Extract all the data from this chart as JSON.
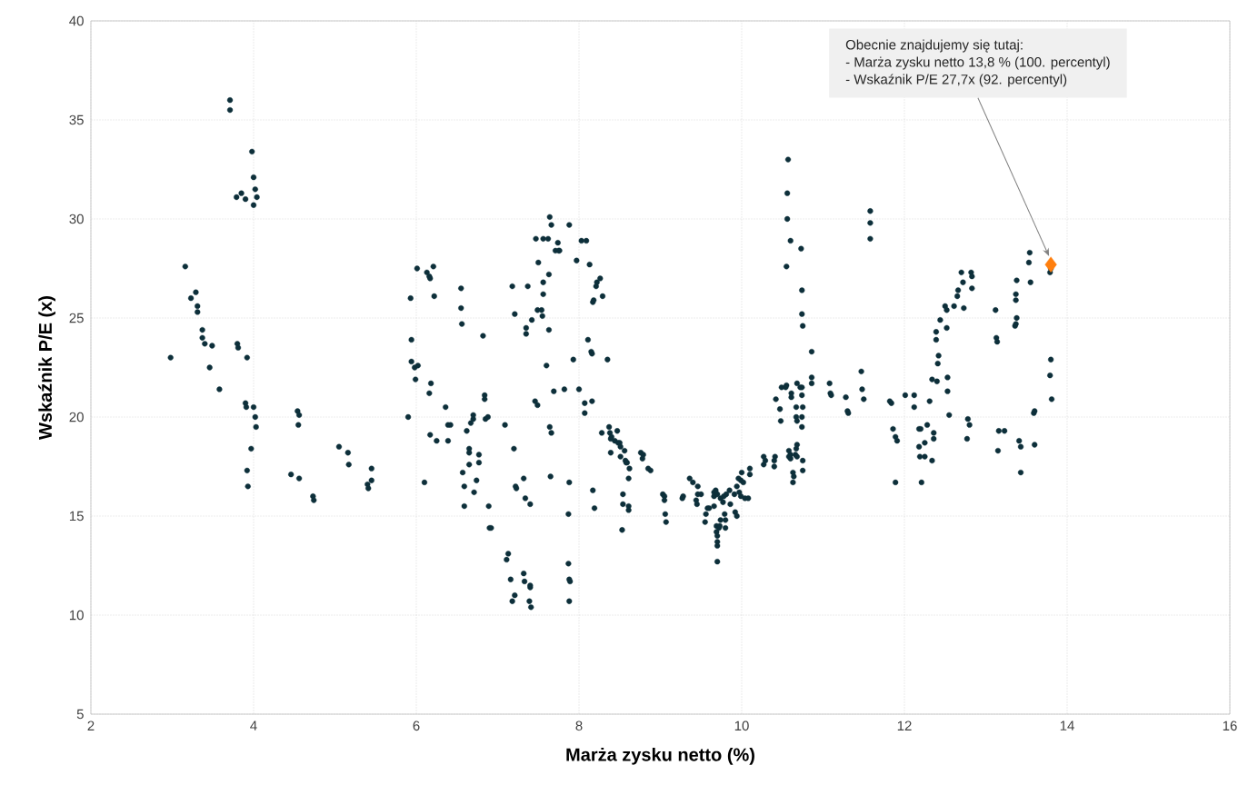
{
  "chart_data": {
    "type": "scatter",
    "xlabel": "Marża zysku netto (%)",
    "ylabel": "Wskaźnik P/E (x)",
    "xlim": [
      2,
      16
    ],
    "ylim": [
      5,
      40
    ],
    "xticks": [
      2,
      4,
      6,
      8,
      10,
      12,
      14,
      16
    ],
    "yticks": [
      5,
      10,
      15,
      20,
      25,
      30,
      35,
      40
    ],
    "grid": true,
    "marker": "circle",
    "series": [
      {
        "color": "#0d2f3a",
        "x": [
          2.98,
          3.16,
          3.23,
          3.29,
          3.31,
          3.31,
          3.37,
          3.37,
          3.4,
          3.46,
          3.49,
          3.58,
          3.71,
          3.71,
          3.79,
          3.8,
          3.81,
          3.85,
          3.9,
          3.9,
          3.91,
          3.92,
          3.92,
          3.93,
          3.98,
          4.0,
          4.02,
          4.04,
          4.0,
          4.0,
          4.02,
          4.03,
          3.97,
          4.46,
          4.56,
          4.54,
          4.56,
          4.55,
          4.73,
          4.74,
          5.05,
          5.16,
          5.17,
          5.4,
          5.41,
          5.45,
          5.45,
          5.9,
          5.93,
          5.94,
          5.94,
          5.98,
          5.99,
          6.02,
          6.01,
          6.1,
          6.13,
          6.16,
          6.17,
          6.16,
          6.18,
          6.17,
          6.21,
          6.22,
          6.25,
          6.36,
          6.39,
          6.42,
          6.39,
          6.55,
          6.55,
          6.56,
          6.57,
          6.59,
          6.59,
          6.62,
          6.65,
          6.65,
          6.65,
          6.67,
          6.7,
          6.7,
          6.71,
          6.74,
          6.77,
          6.77,
          6.82,
          6.84,
          6.84,
          6.85,
          6.88,
          6.89,
          6.9,
          6.92,
          7.09,
          7.11,
          7.13,
          7.16,
          7.18,
          7.21,
          7.18,
          7.21,
          7.2,
          7.23,
          7.22,
          7.32,
          7.33,
          7.32,
          7.34,
          7.35,
          7.35,
          7.37,
          7.39,
          7.4,
          7.4,
          7.41,
          7.4,
          7.42,
          7.46,
          7.49,
          7.49,
          7.5,
          7.47,
          7.56,
          7.54,
          7.55,
          7.56,
          7.56,
          7.6,
          7.62,
          7.63,
          7.63,
          7.64,
          7.66,
          7.64,
          7.66,
          7.65,
          7.69,
          7.71,
          7.74,
          7.75,
          7.76,
          7.82,
          7.87,
          7.87,
          7.88,
          7.89,
          7.88,
          7.88,
          7.88,
          7.93,
          7.97,
          8.0,
          8.03,
          8.09,
          8.07,
          8.07,
          8.11,
          8.13,
          8.15,
          8.16,
          8.16,
          8.17,
          8.19,
          8.17,
          8.18,
          8.21,
          8.22,
          8.26,
          8.29,
          8.28,
          8.35,
          8.37,
          8.38,
          8.39,
          8.39,
          8.4,
          8.44,
          8.48,
          8.47,
          8.5,
          8.51,
          8.51,
          8.53,
          8.54,
          8.54,
          8.56,
          8.57,
          8.58,
          8.59,
          8.61,
          8.61,
          8.61,
          8.62,
          8.76,
          8.79,
          8.78,
          8.85,
          8.88,
          9.03,
          9.05,
          9.06,
          9.07,
          9.05,
          9.28,
          9.27,
          9.36,
          9.4,
          9.44,
          9.45,
          9.46,
          9.46,
          9.5,
          9.55,
          9.56,
          9.58,
          9.6,
          9.66,
          9.66,
          9.66,
          9.68,
          9.7,
          9.69,
          9.69,
          9.7,
          9.7,
          9.7,
          9.7,
          9.72,
          9.73,
          9.74,
          9.74,
          9.77,
          9.78,
          9.79,
          9.8,
          9.8,
          9.81,
          9.85,
          9.86,
          9.91,
          9.92,
          9.94,
          9.94,
          9.96,
          9.97,
          9.99,
          9.99,
          10.0,
          10.02,
          10.04,
          10.08,
          10.1,
          10.1,
          10.27,
          10.27,
          10.29,
          10.4,
          10.4,
          10.41,
          10.42,
          10.47,
          10.48,
          10.49,
          10.54,
          10.55,
          10.57,
          10.56,
          10.56,
          10.55,
          10.58,
          10.58,
          10.6,
          10.6,
          10.6,
          10.61,
          10.61,
          10.63,
          10.63,
          10.64,
          10.66,
          10.67,
          10.67,
          10.68,
          10.67,
          10.68,
          10.68,
          10.68,
          10.72,
          10.73,
          10.74,
          10.75,
          10.74,
          10.74,
          10.74,
          10.75,
          10.74,
          10.74,
          10.75,
          10.75,
          10.86,
          10.86,
          10.86,
          11.08,
          11.09,
          11.1,
          11.28,
          11.3,
          11.31,
          11.47,
          11.48,
          11.5,
          11.58,
          11.58,
          11.58,
          11.82,
          11.84,
          11.86,
          11.89,
          11.91,
          11.89,
          12.01,
          12.12,
          12.12,
          12.18,
          12.18,
          12.19,
          12.21,
          12.2,
          12.25,
          12.28,
          12.25,
          12.31,
          12.34,
          12.34,
          12.36,
          12.36,
          12.39,
          12.39,
          12.4,
          12.41,
          12.42,
          12.44,
          12.5,
          12.52,
          12.52,
          12.53,
          12.53,
          12.55,
          12.61,
          12.65,
          12.66,
          12.7,
          12.72,
          12.73,
          12.77,
          12.78,
          12.8,
          12.82,
          12.83,
          12.83,
          13.12,
          13.13,
          13.14,
          13.16,
          13.23,
          13.15,
          13.36,
          13.37,
          13.37,
          13.37,
          13.38,
          13.38,
          13.41,
          13.43,
          13.43,
          13.53,
          13.54,
          13.55,
          13.59,
          13.6,
          13.6,
          13.79,
          13.8,
          13.8,
          13.79,
          13.81
        ],
        "values": [
          23.0,
          27.6,
          26.0,
          26.3,
          25.6,
          25.3,
          24.4,
          24.0,
          23.7,
          22.5,
          23.6,
          21.4,
          36.0,
          35.5,
          31.1,
          23.7,
          23.5,
          31.3,
          31.0,
          20.7,
          20.5,
          23.0,
          17.3,
          16.5,
          33.4,
          32.1,
          31.5,
          31.1,
          30.7,
          20.5,
          20.0,
          19.5,
          18.4,
          17.1,
          16.9,
          20.3,
          20.1,
          19.6,
          16.0,
          15.8,
          18.5,
          18.2,
          17.6,
          16.6,
          16.4,
          16.8,
          17.4,
          20.0,
          26.0,
          23.9,
          22.8,
          22.5,
          21.9,
          22.6,
          27.5,
          16.7,
          27.3,
          27.1,
          27.0,
          21.2,
          21.7,
          19.1,
          27.6,
          26.1,
          18.8,
          20.5,
          19.6,
          19.6,
          18.8,
          26.5,
          25.5,
          24.7,
          17.2,
          16.5,
          15.5,
          19.3,
          18.4,
          18.2,
          17.6,
          19.7,
          20.1,
          19.9,
          16.2,
          16.8,
          18.1,
          17.7,
          24.1,
          21.1,
          20.9,
          19.9,
          20.0,
          15.5,
          14.4,
          14.4,
          19.6,
          12.8,
          13.1,
          11.8,
          26.6,
          11.0,
          10.7,
          25.2,
          18.4,
          16.4,
          16.5,
          12.1,
          11.7,
          16.9,
          15.9,
          24.5,
          24.2,
          26.6,
          10.7,
          11.4,
          11.5,
          10.4,
          15.6,
          24.9,
          20.8,
          25.4,
          20.6,
          27.8,
          29.0,
          29.0,
          25.4,
          25.1,
          26.2,
          26.8,
          22.6,
          29.0,
          24.4,
          27.2,
          30.1,
          29.7,
          19.5,
          19.2,
          17.0,
          21.3,
          28.4,
          28.8,
          28.4,
          28.4,
          21.4,
          15.1,
          12.6,
          11.8,
          11.7,
          10.7,
          29.7,
          16.7,
          22.9,
          27.9,
          21.4,
          28.9,
          28.9,
          20.2,
          20.7,
          23.9,
          27.7,
          23.3,
          23.2,
          20.8,
          16.3,
          15.4,
          25.8,
          25.9,
          26.6,
          26.8,
          27.0,
          26.1,
          19.2,
          22.9,
          19.5,
          19.2,
          18.2,
          18.9,
          19.0,
          18.8,
          18.7,
          19.3,
          18.7,
          18.5,
          18.0,
          14.3,
          15.6,
          16.1,
          18.3,
          17.8,
          17.7,
          17.7,
          16.9,
          15.5,
          15.3,
          17.4,
          18.2,
          18.1,
          17.9,
          17.4,
          17.3,
          16.1,
          16.0,
          15.1,
          14.7,
          15.8,
          16.0,
          15.9,
          16.9,
          16.7,
          15.8,
          15.6,
          16.1,
          16.5,
          16.1,
          14.7,
          15.1,
          15.4,
          15.4,
          16.2,
          16.0,
          15.5,
          16.3,
          16.1,
          14.5,
          14.2,
          14.0,
          13.7,
          13.5,
          12.7,
          14.4,
          14.5,
          14.8,
          15.9,
          15.7,
          16.0,
          15.1,
          14.8,
          14.4,
          16.1,
          16.3,
          15.6,
          16.1,
          15.2,
          15.0,
          16.5,
          16.9,
          16.2,
          16.0,
          16.8,
          17.2,
          16.7,
          15.9,
          15.9,
          17.4,
          17.1,
          17.6,
          18.0,
          17.8,
          17.8,
          17.5,
          18.0,
          20.9,
          20.4,
          19.8,
          21.5,
          21.5,
          21.6,
          33.0,
          31.3,
          30.0,
          27.6,
          18.3,
          18.0,
          18.1,
          17.9,
          28.9,
          21.2,
          21.0,
          17.2,
          16.7,
          17.0,
          18.1,
          20.5,
          20.0,
          18.0,
          18.4,
          18.6,
          21.7,
          19.8,
          21.5,
          28.5,
          26.4,
          24.6,
          25.2,
          21.5,
          21.1,
          20.5,
          20.0,
          19.5,
          17.8,
          17.3,
          23.3,
          22.0,
          21.7,
          21.7,
          21.2,
          21.1,
          21.0,
          20.3,
          20.2,
          22.3,
          21.4,
          20.9,
          30.4,
          29.8,
          29.0,
          20.8,
          20.7,
          19.4,
          19.0,
          18.8,
          16.7,
          21.1,
          21.1,
          20.5,
          19.4,
          18.5,
          18.0,
          16.7,
          19.4,
          18.7,
          19.6,
          18.0,
          20.8,
          21.9,
          17.8,
          19.2,
          18.9,
          24.3,
          23.9,
          21.8,
          22.7,
          23.1,
          24.9,
          25.6,
          25.4,
          24.5,
          22.0,
          21.3,
          20.1,
          25.6,
          26.1,
          26.4,
          27.3,
          26.8,
          25.5,
          18.9,
          19.9,
          19.6,
          27.3,
          27.1,
          26.5,
          25.4,
          24.0,
          23.8,
          19.3,
          19.3,
          18.3,
          24.6,
          24.7,
          25.9,
          26.2,
          26.9,
          25.0,
          18.8,
          18.5,
          17.2,
          27.8,
          28.3,
          26.8,
          20.2,
          20.3,
          18.6,
          27.3,
          27.5,
          22.9,
          22.1,
          20.9
        ]
      },
      {
        "color": "#ff7f0e",
        "marker": "diamond",
        "x": [
          13.8
        ],
        "values": [
          27.7
        ]
      }
    ],
    "annotations": [
      "Obecnie znajdujemy się tutaj:",
      "- Marża zysku netto 13,8 % (100. percentyl)",
      "- Wskaźnik P/E 27,7x (92. percentyl)"
    ]
  }
}
